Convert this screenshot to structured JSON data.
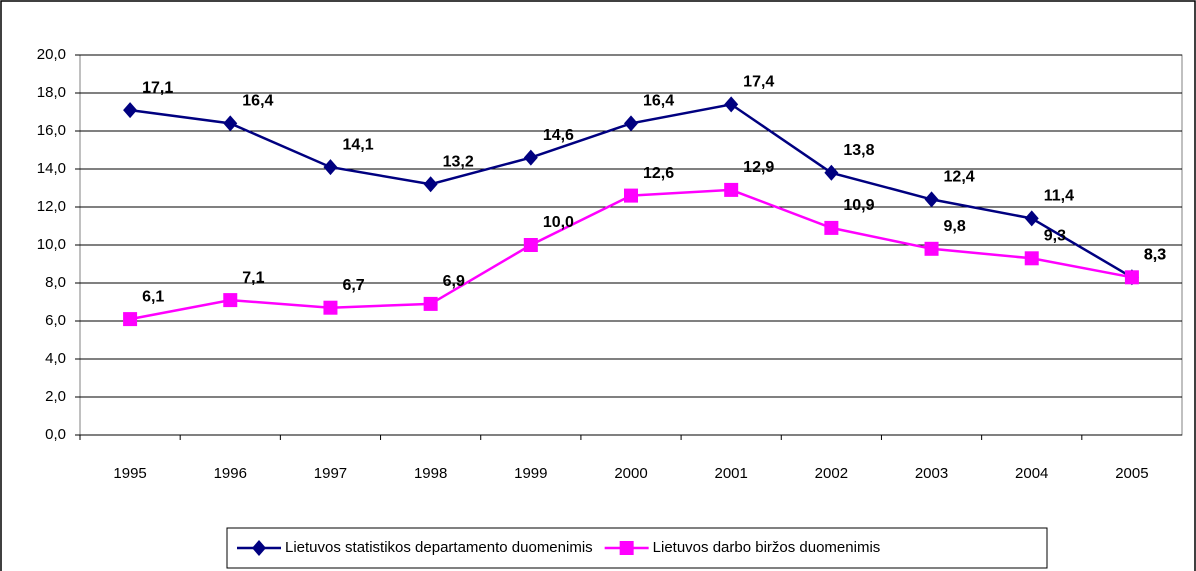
{
  "chart_data": {
    "type": "line",
    "categories": [
      "1995",
      "1996",
      "1997",
      "1998",
      "1999",
      "2000",
      "2001",
      "2002",
      "2003",
      "2004",
      "2005"
    ],
    "series": [
      {
        "name": "Lietuvos statistikos departamento duomenimis",
        "color": "#000080",
        "marker": "diamond",
        "values": [
          17.1,
          16.4,
          14.1,
          13.2,
          14.6,
          16.4,
          17.4,
          13.8,
          12.4,
          11.4,
          8.3
        ],
        "value_labels": [
          "17,1",
          "16,4",
          "14,1",
          "13,2",
          "14,6",
          "16,4",
          "17,4",
          "13,8",
          "12,4",
          "11,4",
          "8,3"
        ]
      },
      {
        "name": "Lietuvos darbo biržos duomenimis",
        "color": "#ff00ff",
        "marker": "square",
        "values": [
          6.1,
          7.1,
          6.7,
          6.9,
          10.0,
          12.6,
          12.9,
          10.9,
          9.8,
          9.3,
          8.3
        ],
        "value_labels": [
          "6,1",
          "7,1",
          "6,7",
          "6,9",
          "10,0",
          "12,6",
          "12,9",
          "10,9",
          "9,8",
          "9,3",
          "8,3"
        ]
      }
    ],
    "ylim": [
      0,
      20
    ],
    "yticks": [
      {
        "value": 0,
        "label": "0,0"
      },
      {
        "value": 2,
        "label": "2,0"
      },
      {
        "value": 4,
        "label": "4,0"
      },
      {
        "value": 6,
        "label": "6,0"
      },
      {
        "value": 8,
        "label": "8,0"
      },
      {
        "value": 10,
        "label": "10,0"
      },
      {
        "value": 12,
        "label": "12,0"
      },
      {
        "value": 14,
        "label": "14,0"
      },
      {
        "value": 16,
        "label": "16,0"
      },
      {
        "value": 18,
        "label": "18,0"
      },
      {
        "value": 20,
        "label": "20,0"
      }
    ],
    "grid": true,
    "legend": "bottom"
  }
}
